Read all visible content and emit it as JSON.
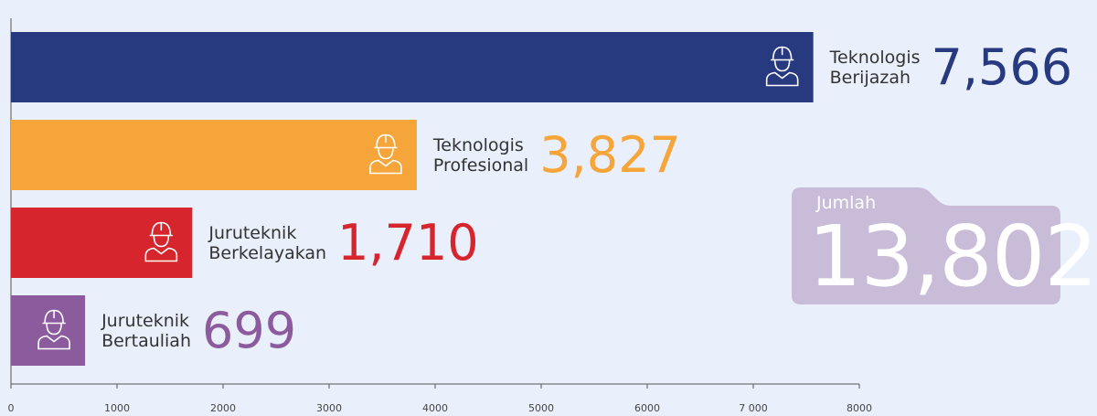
{
  "chart_data": {
    "type": "bar",
    "orientation": "horizontal",
    "categories": [
      "Teknologis Berijazah",
      "Teknologis Profesional",
      "Juruteknik Berkelayakan",
      "Juruteknik Bertauliah"
    ],
    "values": [
      7566,
      3827,
      1710,
      699
    ],
    "value_labels": [
      "7,566",
      "3,827",
      "1,710",
      "699"
    ],
    "colors": [
      "#283a7f",
      "#f6a53b",
      "#d6252c",
      "#8c5b9e"
    ],
    "xlim": [
      0,
      8000
    ],
    "xticks": [
      0,
      1000,
      2000,
      3000,
      4000,
      5000,
      6000,
      {
        "value": 7000,
        "label": "7 000"
      },
      8000
    ],
    "total_label": "Jumlah",
    "total": 13802,
    "total_value_label": "13,802",
    "total_color": "#c8bcd9"
  }
}
